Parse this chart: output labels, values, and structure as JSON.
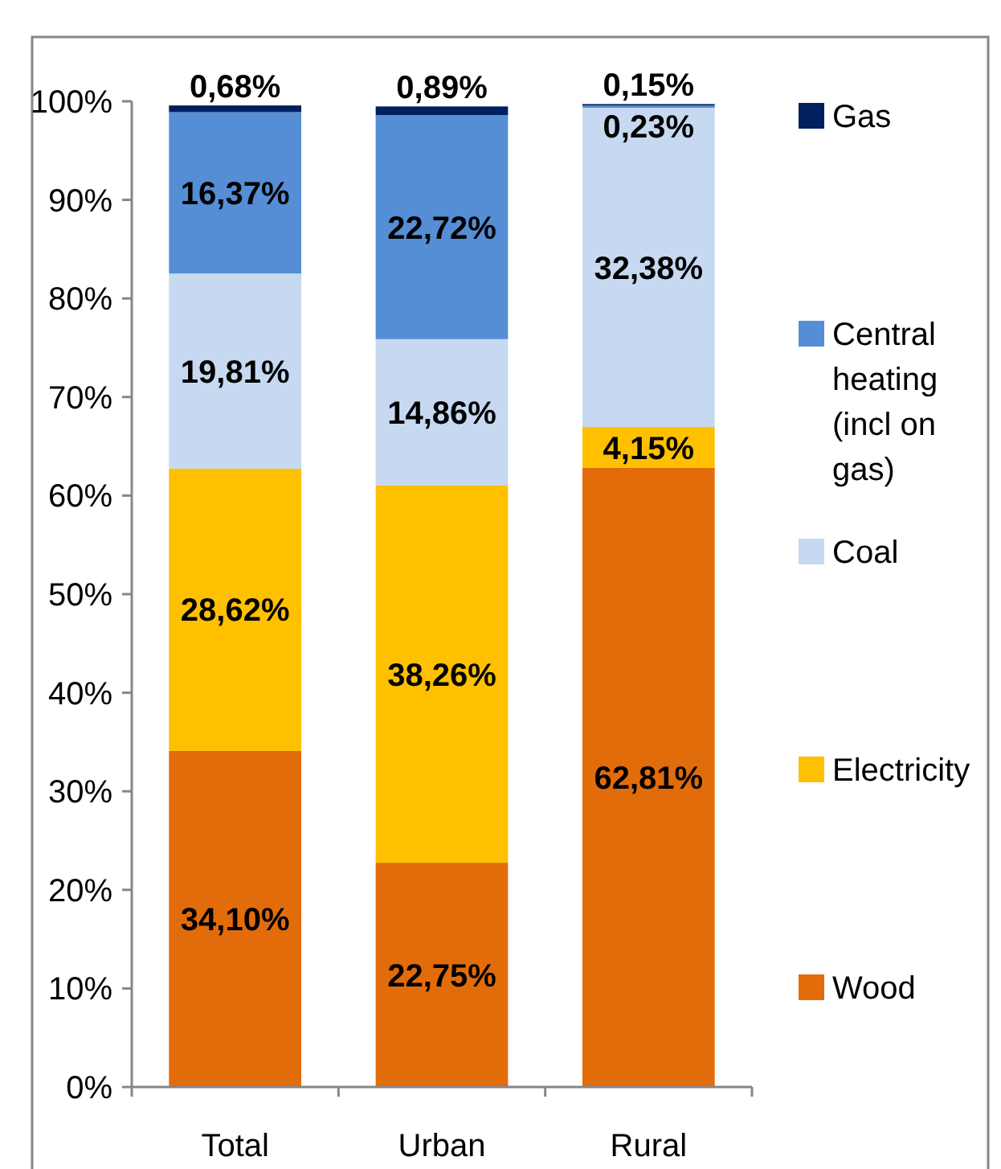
{
  "chart_data": {
    "type": "bar",
    "stacked": true,
    "categories": [
      "Total",
      "Urban",
      "Rural"
    ],
    "ylim": [
      0,
      100
    ],
    "yticks": [
      {
        "value": 0,
        "label": "0%"
      },
      {
        "value": 10,
        "label": "10%"
      },
      {
        "value": 20,
        "label": "20%"
      },
      {
        "value": 30,
        "label": "30%"
      },
      {
        "value": 40,
        "label": "40%"
      },
      {
        "value": 50,
        "label": "50%"
      },
      {
        "value": 60,
        "label": "60%"
      },
      {
        "value": 70,
        "label": "70%"
      },
      {
        "value": 80,
        "label": "80%"
      },
      {
        "value": 90,
        "label": "90%"
      },
      {
        "value": 100,
        "label": "100%"
      }
    ],
    "legend": "right",
    "grid": false,
    "series": [
      {
        "name": "Wood",
        "color": "#e36c0a",
        "values": [
          34.1,
          22.75,
          62.81
        ],
        "value_labels": [
          "34,10%",
          "22,75%",
          "62,81%"
        ]
      },
      {
        "name": "Electricity",
        "color": "#ffc000",
        "values": [
          28.62,
          38.26,
          4.15
        ],
        "value_labels": [
          "28,62%",
          "38,26%",
          "4,15%"
        ]
      },
      {
        "name": "Coal",
        "color": "#c6d9f1",
        "values": [
          19.81,
          14.86,
          32.38
        ],
        "value_labels": [
          "19,81%",
          "14,86%",
          "32,38%"
        ]
      },
      {
        "name": "Central heating (incl on gas)",
        "color": "#558ed5",
        "values": [
          16.37,
          22.72,
          0.23
        ],
        "value_labels": [
          "16,37%",
          "22,72%",
          "0,23%"
        ]
      },
      {
        "name": "Gas",
        "color": "#002060",
        "values": [
          0.68,
          0.89,
          0.15
        ],
        "value_labels": [
          "0,68%",
          "0,89%",
          "0,15%"
        ]
      }
    ]
  }
}
